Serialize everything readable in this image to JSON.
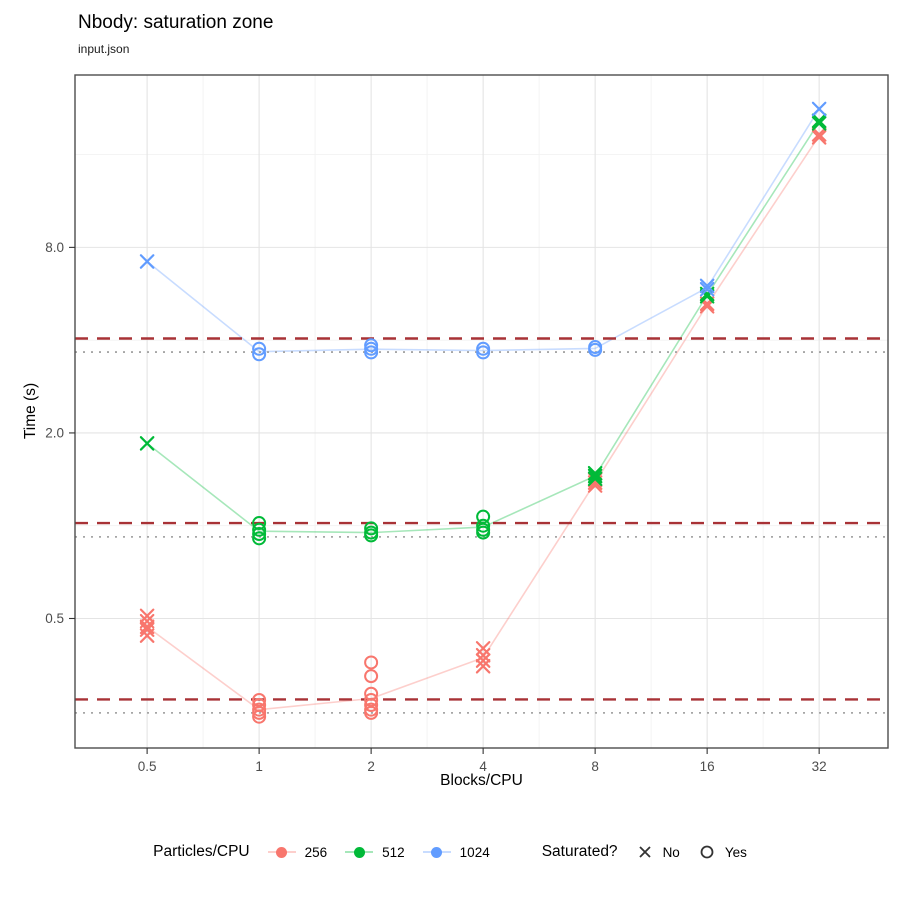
{
  "title": "Nbody: saturation zone",
  "subtitle": "input.json",
  "chart_data": {
    "type": "scatter",
    "title": "Nbody: saturation zone",
    "subtitle": "input.json",
    "xlabel": "Blocks/CPU",
    "ylabel": "Time (s)",
    "x_scale": "log2",
    "y_scale": "log2",
    "xlim": [
      0.32,
      49
    ],
    "ylim": [
      0.19,
      29
    ],
    "x_ticks": [
      0.5,
      1,
      2,
      4,
      8,
      16,
      32
    ],
    "x_tick_labels": [
      "0.5",
      "1",
      "2",
      "4",
      "8",
      "16",
      "32"
    ],
    "y_ticks": [
      0.5,
      2,
      8
    ],
    "y_tick_labels": [
      "0.5",
      "2.0",
      "8.0"
    ],
    "x_minor": [
      0.707,
      1.414,
      2.828,
      5.657,
      11.314,
      22.627
    ],
    "y_minor": [
      1,
      4,
      16
    ],
    "grid": true,
    "legend_position": "bottom",
    "series": [
      {
        "name": "256",
        "color": "#F8766D",
        "saturation_dashed": 0.273,
        "saturation_dotted": 0.247,
        "trend": [
          [
            0.5,
            0.47
          ],
          [
            1,
            0.253
          ],
          [
            2,
            0.275
          ],
          [
            4,
            0.373
          ],
          [
            8,
            1.38
          ],
          [
            16,
            5.2
          ],
          [
            32,
            18.4
          ]
        ],
        "groups": [
          {
            "x": 0.5,
            "saturated": "No",
            "shape": "x",
            "times": [
              0.51,
              0.49,
              0.47,
              0.46,
              0.44
            ]
          },
          {
            "x": 1,
            "saturated": "Yes",
            "shape": "circle",
            "times": [
              0.272,
              0.262,
              0.253,
              0.247,
              0.24
            ]
          },
          {
            "x": 2,
            "saturated": "Yes",
            "shape": "circle",
            "times": [
              0.36,
              0.325,
              0.285,
              0.272,
              0.262,
              0.253,
              0.247
            ]
          },
          {
            "x": 4,
            "saturated": "No",
            "shape": "x",
            "times": [
              0.4,
              0.38,
              0.365,
              0.35
            ]
          },
          {
            "x": 8,
            "saturated": "No",
            "shape": "x",
            "times": [
              1.41,
              1.38,
              1.35
            ]
          },
          {
            "x": 16,
            "saturated": "No",
            "shape": "x",
            "times": [
              5.25,
              5.15
            ]
          },
          {
            "x": 32,
            "saturated": "No",
            "shape": "x",
            "times": [
              18.6,
              18.2
            ]
          }
        ]
      },
      {
        "name": "512",
        "color": "#00BA38",
        "saturation_dashed": 1.02,
        "saturation_dotted": 0.92,
        "trend": [
          [
            0.5,
            1.85
          ],
          [
            1,
            0.96
          ],
          [
            2,
            0.95
          ],
          [
            4,
            0.99
          ],
          [
            8,
            1.45
          ],
          [
            16,
            5.6
          ],
          [
            32,
            20.4
          ]
        ],
        "groups": [
          {
            "x": 0.5,
            "saturated": "No",
            "shape": "x",
            "times": [
              1.85
            ]
          },
          {
            "x": 1,
            "saturated": "Yes",
            "shape": "circle",
            "times": [
              1.02,
              0.97,
              0.94,
              0.91
            ]
          },
          {
            "x": 2,
            "saturated": "Yes",
            "shape": "circle",
            "times": [
              0.98,
              0.95,
              0.93
            ]
          },
          {
            "x": 4,
            "saturated": "Yes",
            "shape": "circle",
            "times": [
              1.07,
              1.0,
              0.97,
              0.95
            ]
          },
          {
            "x": 8,
            "saturated": "No",
            "shape": "x",
            "times": [
              1.48,
              1.45,
              1.42
            ]
          },
          {
            "x": 16,
            "saturated": "No",
            "shape": "x",
            "times": [
              5.65,
              5.55
            ]
          },
          {
            "x": 32,
            "saturated": "No",
            "shape": "x",
            "times": [
              20.6,
              20.2
            ]
          }
        ]
      },
      {
        "name": "1024",
        "color": "#619CFF",
        "saturation_dashed": 4.05,
        "saturation_dotted": 3.66,
        "trend": [
          [
            0.5,
            7.2
          ],
          [
            1,
            3.67
          ],
          [
            2,
            3.74
          ],
          [
            4,
            3.7
          ],
          [
            8,
            3.76
          ],
          [
            16,
            5.92
          ],
          [
            32,
            22.5
          ]
        ],
        "groups": [
          {
            "x": 0.5,
            "saturated": "No",
            "shape": "x",
            "times": [
              7.2
            ]
          },
          {
            "x": 1,
            "saturated": "Yes",
            "shape": "circle",
            "times": [
              3.75,
              3.6
            ]
          },
          {
            "x": 2,
            "saturated": "Yes",
            "shape": "circle",
            "times": [
              3.85,
              3.75,
              3.65
            ]
          },
          {
            "x": 4,
            "saturated": "Yes",
            "shape": "circle",
            "times": [
              3.75,
              3.65
            ]
          },
          {
            "x": 8,
            "saturated": "Yes",
            "shape": "circle",
            "times": [
              3.8,
              3.72
            ]
          },
          {
            "x": 16,
            "saturated": "No",
            "shape": "x",
            "times": [
              6.0,
              5.85
            ]
          },
          {
            "x": 32,
            "saturated": "No",
            "shape": "x",
            "times": [
              22.5
            ]
          }
        ]
      }
    ],
    "style": {
      "dashed_color": "#A83236",
      "dotted_color": "#A6A6A6",
      "grid_major": "#E4E4E4",
      "grid_minor": "#F2F2F2",
      "panel_border": "#4D4D4D",
      "tick_color": "#333333",
      "tick_label_color": "#4D4D4D"
    }
  },
  "legend": {
    "color_title": "Particles/CPU",
    "color_items": [
      {
        "label": "256",
        "color": "#F8766D"
      },
      {
        "label": "512",
        "color": "#00BA38"
      },
      {
        "label": "1024",
        "color": "#619CFF"
      }
    ],
    "shape_title": "Saturated?",
    "shape_items": [
      {
        "label": "No",
        "shape": "x"
      },
      {
        "label": "Yes",
        "shape": "circle"
      }
    ]
  }
}
